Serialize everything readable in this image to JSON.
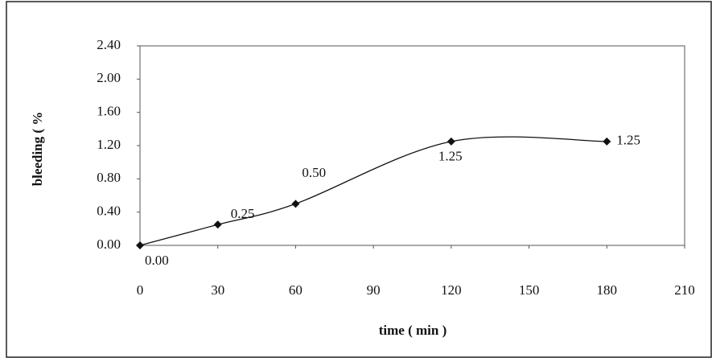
{
  "chart_data": {
    "type": "line",
    "x_label": "time ( min )",
    "y_label": "bleeding ( %",
    "x": [
      0,
      30,
      60,
      120,
      180
    ],
    "series": [
      {
        "color": "#111111",
        "values": [
          0,
          0.25,
          0.5,
          1.25,
          1.25
        ],
        "value_labels": [
          "0.00",
          "0.25",
          "0.50",
          "1.25",
          "1.25"
        ]
      }
    ],
    "xlim": [
      0,
      210
    ],
    "xticks": [
      0,
      30,
      60,
      90,
      120,
      150,
      180,
      210
    ],
    "ylim": [
      0,
      2.4
    ],
    "yticks": [
      {
        "value": 0,
        "label": "0.00"
      },
      {
        "value": 0.4,
        "label": "0.40"
      },
      {
        "value": 0.8,
        "label": "0.80"
      },
      {
        "value": 1.2,
        "label": "1.20"
      },
      {
        "value": 1.6,
        "label": "1.60"
      },
      {
        "value": 2.0,
        "label": "2.00"
      },
      {
        "value": 2.4,
        "label": "2.40"
      }
    ]
  }
}
